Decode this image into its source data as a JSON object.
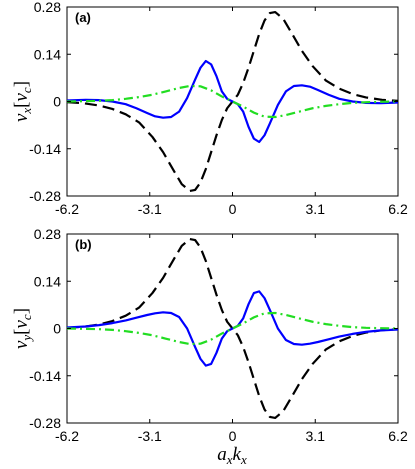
{
  "chart_data": [
    {
      "type": "line",
      "panel_label": "(a)",
      "ylabel": {
        "main": "v",
        "sub": "x",
        "bracket_open": "[",
        "unit_main": "v",
        "unit_sub": "c",
        "bracket_close": "]"
      },
      "xlabel": null,
      "xlim": [
        -6.2,
        6.2
      ],
      "ylim": [
        -0.28,
        0.28
      ],
      "xticks": [
        -6.2,
        -3.1,
        0,
        3.1,
        6.2
      ],
      "xtick_labels": [
        "-6.2",
        "-3.1",
        "0",
        "3.1",
        "6.2"
      ],
      "yticks": [
        -0.28,
        -0.14,
        0,
        0.14,
        0.28
      ],
      "ytick_labels": [
        "-0.28",
        "-0.14",
        "0",
        "0.14",
        "0.28"
      ],
      "grid": false,
      "series": [
        {
          "style": "dashed",
          "color": "#000000",
          "x": [
            -6.2,
            -5.6,
            -5.0,
            -4.5,
            -4.0,
            -3.5,
            -3.0,
            -2.6,
            -2.2,
            -1.9,
            -1.6,
            -1.4,
            -1.2,
            -1.0,
            -0.8,
            -0.6,
            -0.4,
            -0.2,
            0,
            0.2,
            0.4,
            0.6,
            0.8,
            1.0,
            1.2,
            1.4,
            1.6,
            1.9,
            2.2,
            2.6,
            3.0,
            3.5,
            4.0,
            4.5,
            5.0,
            5.6,
            6.2
          ],
          "y": [
            -0.002,
            -0.005,
            -0.012,
            -0.022,
            -0.038,
            -0.062,
            -0.105,
            -0.15,
            -0.205,
            -0.245,
            -0.265,
            -0.262,
            -0.24,
            -0.2,
            -0.15,
            -0.1,
            -0.055,
            -0.02,
            0,
            0.02,
            0.055,
            0.1,
            0.15,
            0.2,
            0.24,
            0.262,
            0.265,
            0.245,
            0.205,
            0.15,
            0.105,
            0.062,
            0.038,
            0.022,
            0.012,
            0.005,
            0.002
          ]
        },
        {
          "style": "solid",
          "color": "#0000ff",
          "x": [
            -6.2,
            -5.5,
            -5.0,
            -4.5,
            -4.0,
            -3.6,
            -3.2,
            -2.9,
            -2.6,
            -2.3,
            -2.0,
            -1.7,
            -1.4,
            -1.2,
            -1.0,
            -0.8,
            -0.6,
            -0.4,
            -0.2,
            0,
            0.2,
            0.4,
            0.6,
            0.8,
            1.0,
            1.2,
            1.4,
            1.7,
            2.0,
            2.3,
            2.6,
            2.9,
            3.2,
            3.6,
            4.0,
            4.5,
            5.0,
            5.5,
            6.2
          ],
          "y": [
            0.003,
            0.005,
            0.004,
            0.0,
            -0.008,
            -0.02,
            -0.034,
            -0.044,
            -0.048,
            -0.046,
            -0.03,
            0.01,
            0.065,
            0.1,
            0.12,
            0.11,
            0.075,
            0.03,
            0.008,
            0,
            -0.008,
            -0.03,
            -0.075,
            -0.11,
            -0.12,
            -0.1,
            -0.065,
            -0.01,
            0.03,
            0.046,
            0.048,
            0.044,
            0.034,
            0.02,
            0.008,
            0.0,
            -0.004,
            -0.005,
            -0.003
          ]
        },
        {
          "style": "dash-dot",
          "color": "#22dd22",
          "x": [
            -6.2,
            -5.5,
            -5.0,
            -4.5,
            -4.0,
            -3.5,
            -3.0,
            -2.5,
            -2.0,
            -1.6,
            -1.2,
            -0.8,
            -0.4,
            0,
            0.4,
            0.8,
            1.2,
            1.6,
            2.0,
            2.5,
            3.0,
            3.5,
            4.0,
            4.5,
            5.0,
            5.5,
            6.2
          ],
          "y": [
            0.0,
            0.001,
            0.002,
            0.004,
            0.008,
            0.013,
            0.02,
            0.03,
            0.04,
            0.046,
            0.045,
            0.033,
            0.015,
            0,
            -0.015,
            -0.033,
            -0.045,
            -0.046,
            -0.04,
            -0.03,
            -0.02,
            -0.013,
            -0.008,
            -0.004,
            -0.002,
            -0.001,
            0.0
          ]
        }
      ]
    },
    {
      "type": "line",
      "panel_label": "(b)",
      "ylabel": {
        "main": "v",
        "sub": "y",
        "bracket_open": "[",
        "unit_main": "v",
        "unit_sub": "c",
        "bracket_close": "]"
      },
      "xlabel": {
        "a_main": "a",
        "a_sub": "x",
        "k_main": "k",
        "k_sub": "x"
      },
      "xlim": [
        -6.2,
        6.2
      ],
      "ylim": [
        -0.28,
        0.28
      ],
      "xticks": [
        -6.2,
        -3.1,
        0,
        3.1,
        6.2
      ],
      "xtick_labels": [
        "-6.2",
        "-3.1",
        "0",
        "3.1",
        "6.2"
      ],
      "yticks": [
        -0.28,
        -0.14,
        0,
        0.14,
        0.28
      ],
      "ytick_labels": [
        "-0.28",
        "-0.14",
        "0",
        "0.14",
        "0.28"
      ],
      "grid": false,
      "series": [
        {
          "style": "dashed",
          "color": "#000000",
          "x": [
            -6.2,
            -5.6,
            -5.0,
            -4.5,
            -4.0,
            -3.5,
            -3.0,
            -2.6,
            -2.2,
            -1.9,
            -1.6,
            -1.4,
            -1.2,
            -1.0,
            -0.8,
            -0.6,
            -0.4,
            -0.2,
            0,
            0.2,
            0.4,
            0.6,
            0.8,
            1.0,
            1.2,
            1.4,
            1.6,
            1.9,
            2.2,
            2.6,
            3.0,
            3.5,
            4.0,
            4.5,
            5.0,
            5.6,
            6.2
          ],
          "y": [
            0.002,
            0.005,
            0.012,
            0.022,
            0.038,
            0.062,
            0.105,
            0.15,
            0.205,
            0.245,
            0.265,
            0.262,
            0.24,
            0.2,
            0.15,
            0.1,
            0.055,
            0.02,
            0,
            -0.02,
            -0.055,
            -0.1,
            -0.15,
            -0.2,
            -0.24,
            -0.262,
            -0.265,
            -0.245,
            -0.205,
            -0.15,
            -0.105,
            -0.062,
            -0.038,
            -0.022,
            -0.012,
            -0.005,
            -0.002
          ]
        },
        {
          "style": "solid",
          "color": "#0000ff",
          "x": [
            -6.2,
            -5.5,
            -5.0,
            -4.5,
            -4.0,
            -3.6,
            -3.2,
            -2.9,
            -2.6,
            -2.3,
            -2.0,
            -1.7,
            -1.4,
            -1.2,
            -1.0,
            -0.8,
            -0.6,
            -0.4,
            -0.2,
            0,
            0.2,
            0.4,
            0.6,
            0.8,
            1.0,
            1.2,
            1.4,
            1.7,
            2.0,
            2.3,
            2.6,
            2.9,
            3.2,
            3.6,
            4.0,
            4.5,
            5.0,
            5.5,
            6.2
          ],
          "y": [
            0.003,
            0.006,
            0.01,
            0.016,
            0.024,
            0.032,
            0.04,
            0.045,
            0.048,
            0.046,
            0.034,
            0.0,
            -0.055,
            -0.09,
            -0.11,
            -0.105,
            -0.072,
            -0.03,
            -0.008,
            0,
            0.008,
            0.03,
            0.072,
            0.105,
            0.11,
            0.09,
            0.055,
            0.0,
            -0.034,
            -0.046,
            -0.048,
            -0.045,
            -0.04,
            -0.032,
            -0.024,
            -0.016,
            -0.01,
            -0.006,
            -0.003
          ]
        },
        {
          "style": "dash-dot",
          "color": "#22dd22",
          "x": [
            -6.2,
            -5.5,
            -5.0,
            -4.5,
            -4.0,
            -3.5,
            -3.0,
            -2.5,
            -2.0,
            -1.6,
            -1.2,
            -0.8,
            -0.4,
            0,
            0.4,
            0.8,
            1.2,
            1.6,
            2.0,
            2.5,
            3.0,
            3.5,
            4.0,
            4.5,
            5.0,
            5.5,
            6.2
          ],
          "y": [
            0.0,
            -0.001,
            -0.002,
            -0.004,
            -0.008,
            -0.013,
            -0.02,
            -0.03,
            -0.04,
            -0.046,
            -0.045,
            -0.033,
            -0.015,
            0,
            0.015,
            0.033,
            0.045,
            0.046,
            0.04,
            0.03,
            0.02,
            0.013,
            0.008,
            0.004,
            0.002,
            0.001,
            0.0
          ]
        }
      ]
    }
  ]
}
